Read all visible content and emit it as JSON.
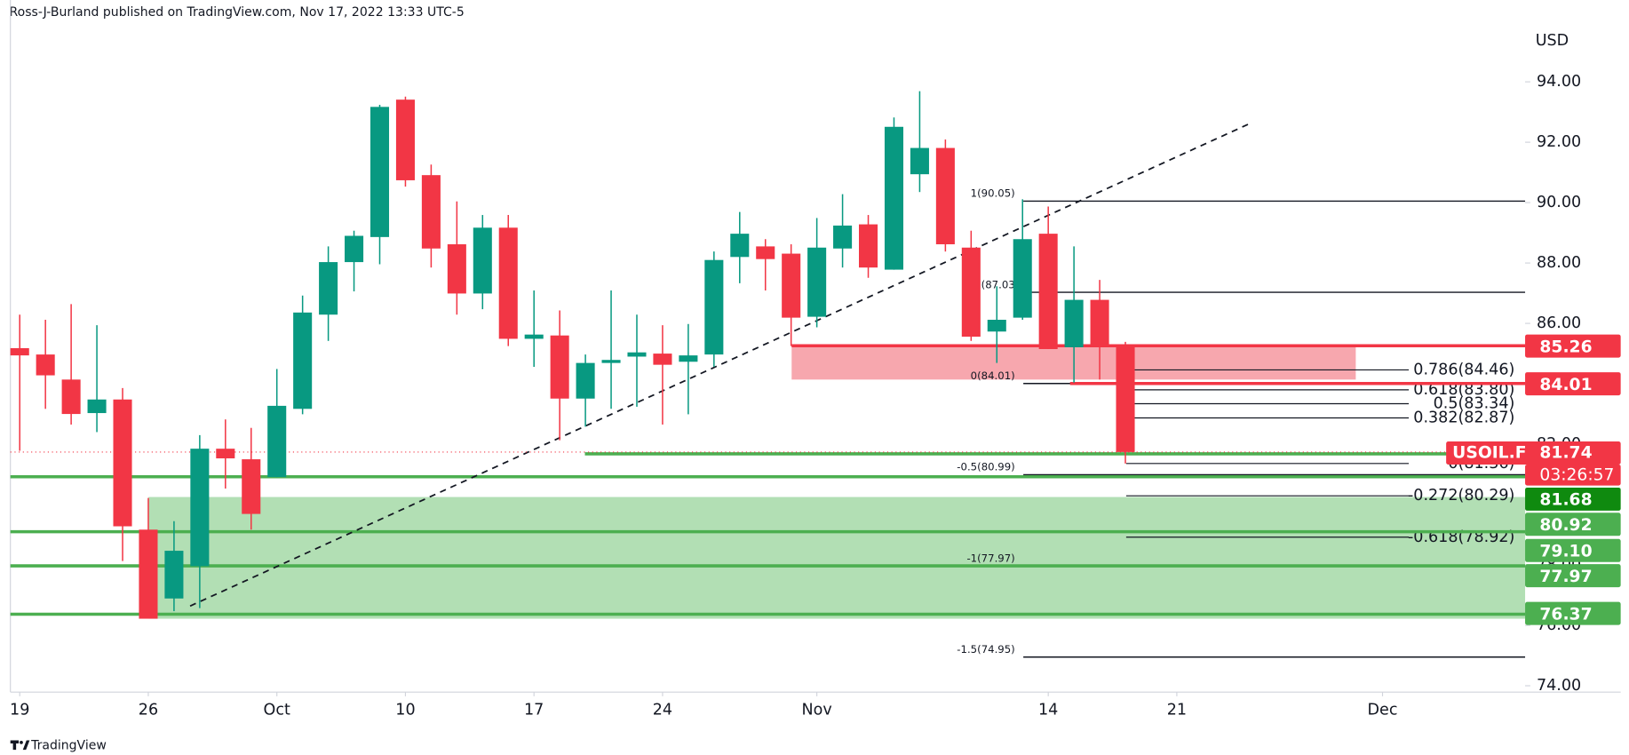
{
  "header": "Ross-J-Burland published on TradingView.com, Nov 17, 2022 13:33 UTC-5",
  "footer": "TradingView",
  "chart_data": {
    "type": "candlestick",
    "currency": "USD",
    "x": [
      "2022-09-19",
      "2022-09-20",
      "2022-09-21",
      "2022-09-22",
      "2022-09-23",
      "2022-09-26",
      "2022-09-27",
      "2022-09-28",
      "2022-09-29",
      "2022-09-30",
      "2022-10-03",
      "2022-10-04",
      "2022-10-05",
      "2022-10-06",
      "2022-10-07",
      "2022-10-10",
      "2022-10-11",
      "2022-10-12",
      "2022-10-13",
      "2022-10-14",
      "2022-10-17",
      "2022-10-18",
      "2022-10-19",
      "2022-10-20",
      "2022-10-21",
      "2022-10-24",
      "2022-10-25",
      "2022-10-26",
      "2022-10-27",
      "2022-10-28",
      "2022-10-31",
      "2022-11-01",
      "2022-11-02",
      "2022-11-03",
      "2022-11-04",
      "2022-11-07",
      "2022-11-08",
      "2022-11-09",
      "2022-11-10",
      "2022-11-11",
      "2022-11-14",
      "2022-11-15",
      "2022-11-16",
      "2022-11-17"
    ],
    "series": [
      {
        "name": "USOIL.F",
        "open": [
          85.18,
          84.97,
          84.14,
          83.03,
          83.48,
          79.17,
          76.89,
          77.96,
          81.85,
          81.5,
          80.91,
          83.17,
          86.29,
          88.03,
          88.86,
          93.41,
          90.91,
          88.62,
          86.99,
          89.17,
          85.49,
          85.6,
          83.51,
          84.69,
          84.9,
          85.0,
          84.73,
          84.97,
          88.2,
          88.55,
          88.31,
          86.22,
          88.48,
          89.28,
          87.78,
          90.94,
          91.81,
          88.51,
          85.73,
          86.19,
          88.97,
          85.21,
          86.78,
          85.25
        ],
        "high": [
          86.29,
          86.12,
          86.64,
          85.94,
          83.86,
          80.22,
          79.45,
          82.3,
          82.82,
          82.54,
          84.49,
          86.92,
          88.55,
          89.07,
          93.24,
          93.51,
          91.26,
          90.04,
          89.59,
          89.59,
          87.09,
          86.43,
          84.97,
          87.09,
          86.29,
          85.94,
          85.98,
          88.38,
          89.69,
          88.79,
          88.62,
          89.49,
          90.28,
          89.59,
          92.82,
          93.69,
          92.09,
          89.07,
          87.23,
          90.11,
          89.87,
          88.55,
          87.44,
          85.39
        ],
        "low": [
          81.78,
          83.17,
          82.65,
          82.4,
          78.13,
          76.22,
          76.47,
          76.57,
          80.53,
          79.17,
          80.91,
          82.99,
          85.42,
          87.06,
          87.96,
          90.53,
          87.85,
          86.29,
          86.47,
          85.25,
          84.56,
          82.13,
          82.58,
          83.17,
          83.24,
          82.65,
          82.99,
          84.56,
          87.33,
          87.09,
          85.25,
          85.87,
          87.85,
          87.51,
          87.78,
          90.35,
          88.38,
          85.42,
          84.69,
          86.12,
          85.15,
          84.04,
          84.14,
          81.36
        ],
        "close": [
          84.94,
          84.28,
          83.0,
          83.48,
          79.28,
          76.22,
          78.47,
          81.85,
          81.53,
          79.69,
          83.27,
          86.36,
          88.03,
          88.9,
          93.17,
          90.74,
          88.48,
          86.99,
          89.17,
          85.49,
          85.63,
          83.51,
          84.69,
          84.79,
          85.04,
          84.63,
          84.94,
          88.1,
          88.97,
          88.13,
          86.19,
          88.51,
          89.24,
          87.85,
          92.51,
          91.81,
          88.62,
          85.56,
          86.12,
          88.79,
          85.15,
          86.78,
          85.21,
          81.74
        ]
      }
    ],
    "up_color": "#089981",
    "down_color": "#f23645",
    "countdown": "03:26:57",
    "ylim": [
      73.79,
      96.71
    ],
    "yticks": [
      {
        "value": 74,
        "label": "74.00"
      },
      {
        "value": 76,
        "label": "76.00"
      },
      {
        "value": 78,
        "label": "78.00"
      },
      {
        "value": 80,
        "label": "80.00"
      },
      {
        "value": 82,
        "label": "82.00"
      },
      {
        "value": 84,
        "label": "84.00"
      },
      {
        "value": 86,
        "label": "86.00"
      },
      {
        "value": 88,
        "label": "88.00"
      },
      {
        "value": 90,
        "label": "90.00"
      },
      {
        "value": 92,
        "label": "92.00"
      },
      {
        "value": 94,
        "label": "94.00"
      }
    ],
    "xticks": [
      {
        "value": "2022-09-19",
        "label": "19"
      },
      {
        "value": "2022-09-26",
        "label": "26"
      },
      {
        "value": "2022-10-03",
        "label": "Oct"
      },
      {
        "value": "2022-10-10",
        "label": "10"
      },
      {
        "value": "2022-10-17",
        "label": "17"
      },
      {
        "value": "2022-10-24",
        "label": "24"
      },
      {
        "value": "2022-11-01",
        "label": "Nov"
      },
      {
        "value": "2022-11-14",
        "label": "14"
      },
      {
        "value": "2022-11-21",
        "label": "21"
      },
      {
        "value": "2022-12-01",
        "label": "Dec"
      }
    ],
    "levels": [
      {
        "value": 85.26,
        "label": "85.26",
        "color": "#f23645",
        "box_color": "#f23645"
      },
      {
        "value": 84.01,
        "label": "84.01",
        "color": "#f23645",
        "box_color": "#f23645"
      },
      {
        "value": 81.68,
        "label": "81.68",
        "color": "#4caf50",
        "box_color": "#0f8a0f"
      },
      {
        "value": 80.92,
        "label": "80.92",
        "color": "#4caf50",
        "box_color": "#4caf50"
      },
      {
        "value": 79.1,
        "label": "79.10",
        "color": "#4caf50",
        "box_color": "#4caf50"
      },
      {
        "value": 77.97,
        "label": "77.97",
        "color": "#4caf50",
        "box_color": "#4caf50"
      },
      {
        "value": 76.37,
        "label": "76.37",
        "color": "#4caf50",
        "box_color": "#4caf50"
      }
    ],
    "zones": [
      {
        "top": 85.26,
        "bottom": 84.14,
        "color": "#f7a7ae"
      },
      {
        "top": 80.25,
        "bottom": 76.22,
        "color": "#b2dfb4"
      }
    ],
    "fib_main": [
      {
        "value": 90.05,
        "label": "1(90.05)"
      },
      {
        "value": 87.03,
        "label": "(87.03"
      },
      {
        "value": 84.01,
        "label": "0(84.01)"
      },
      {
        "value": 80.99,
        "label": "-0.5(80.99)"
      },
      {
        "value": 77.97,
        "label": "-1(77.97)"
      },
      {
        "value": 74.95,
        "label": "-1.5(74.95)"
      }
    ],
    "fib_retrace": [
      {
        "value": 84.46,
        "label": "0.786(84.46)"
      },
      {
        "value": 83.8,
        "label": "0.618(83.80)"
      },
      {
        "value": 83.34,
        "label": "0.5(83.34)"
      },
      {
        "value": 82.87,
        "label": "0.382(82.87)"
      },
      {
        "value": 81.36,
        "label": "0(81.36)"
      },
      {
        "value": 80.29,
        "label": "-0.272(80.29)"
      },
      {
        "value": 78.92,
        "label": "-0.618(78.92)"
      }
    ],
    "trend_line": {
      "start": 76.64,
      "end": 92.65
    }
  }
}
